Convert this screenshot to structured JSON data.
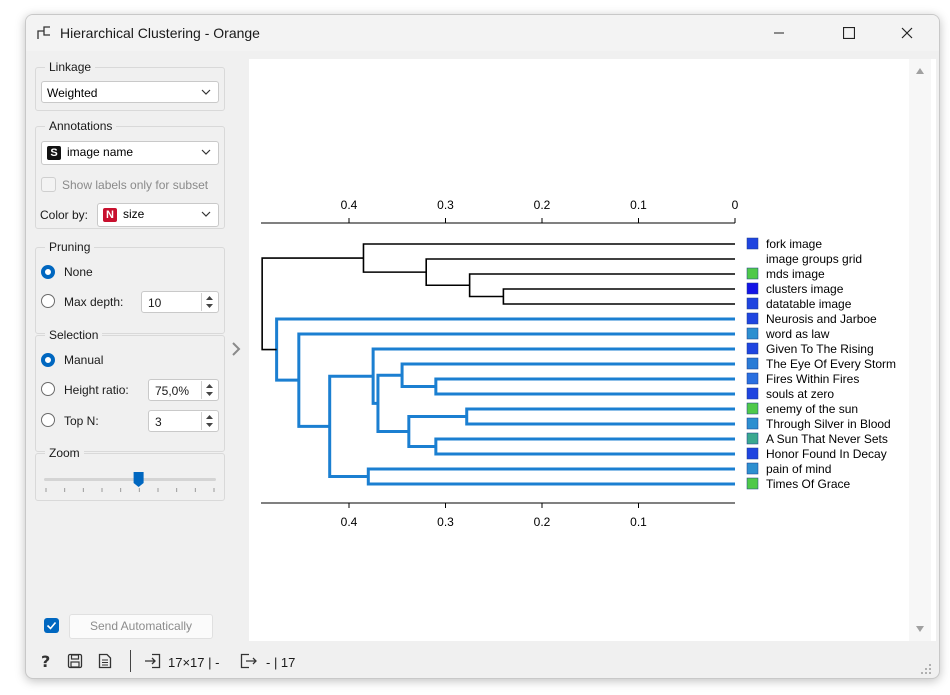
{
  "window": {
    "title": "Hierarchical Clustering - Orange"
  },
  "linkage": {
    "label": "Linkage",
    "value": "Weighted"
  },
  "annotations": {
    "label": "Annotations",
    "value": "image name",
    "badge": "S",
    "show_subset_label": "Show labels only for subset",
    "color_by_label": "Color by:",
    "color_by_value": "size",
    "color_badge": "N"
  },
  "pruning": {
    "label": "Pruning",
    "none_label": "None",
    "max_depth_label": "Max depth:",
    "max_depth_value": "10"
  },
  "selection": {
    "label": "Selection",
    "manual_label": "Manual",
    "height_ratio_label": "Height ratio:",
    "height_ratio_value": "75,0%",
    "top_n_label": "Top N:",
    "top_n_value": "3"
  },
  "zoom": {
    "label": "Zoom",
    "level": 0.55
  },
  "send": {
    "label": "Send Automatically",
    "checked": true
  },
  "status": {
    "input": "17×17 | -",
    "output": "- | 17"
  },
  "chart_data": {
    "type": "dendrogram",
    "axis_ticks": [
      "0.4",
      "0.3",
      "0.2",
      "0.1",
      "0"
    ],
    "axis_values": [
      0.4,
      0.3,
      0.2,
      0.1,
      0.0
    ],
    "bottom_axis_ticks": [
      "0.4",
      "0.3",
      "0.2",
      "0.1"
    ],
    "axis_range": [
      0.49,
      0.0
    ],
    "leaves": [
      {
        "name": "fork image",
        "color": "#1f45e0"
      },
      {
        "name": "image groups grid",
        "color": ""
      },
      {
        "name": "mds image",
        "color": "#4fc94a"
      },
      {
        "name": "clusters image",
        "color": "#1414e6"
      },
      {
        "name": "datatable image",
        "color": "#1f45e0"
      },
      {
        "name": "Neurosis and Jarboe",
        "color": "#1f45e0"
      },
      {
        "name": "word as law",
        "color": "#2e8fd0"
      },
      {
        "name": "Given To The Rising",
        "color": "#1f45e0"
      },
      {
        "name": "The Eye Of Every Storm",
        "color": "#2a7bd6"
      },
      {
        "name": "Fires Within Fires",
        "color": "#2a6fe0"
      },
      {
        "name": "souls at zero",
        "color": "#1f45e0"
      },
      {
        "name": "enemy of the sun",
        "color": "#4fc94a"
      },
      {
        "name": "Through Silver in Blood",
        "color": "#2e8fd0"
      },
      {
        "name": "A Sun That Never Sets",
        "color": "#3aa88f"
      },
      {
        "name": "Honor Found In Decay",
        "color": "#1f45e0"
      },
      {
        "name": "pain of mind",
        "color": "#2e8fd0"
      },
      {
        "name": "Times Of Grace",
        "color": "#4fc94a"
      }
    ],
    "merges": [
      {
        "a": 3,
        "b": 4,
        "height": 0.24,
        "group": "black"
      },
      {
        "a": 2,
        "b": "m0",
        "height": 0.275,
        "group": "black"
      },
      {
        "a": 1,
        "b": "m1",
        "height": 0.32,
        "group": "black"
      },
      {
        "a": 0,
        "b": "m2",
        "height": 0.385,
        "group": "black"
      },
      {
        "a": 9,
        "b": 10,
        "height": 0.31,
        "group": "blue"
      },
      {
        "a": 8,
        "b": "m4",
        "height": 0.345,
        "group": "blue"
      },
      {
        "a": 11,
        "b": 12,
        "height": 0.278,
        "group": "blue"
      },
      {
        "a": 13,
        "b": 14,
        "height": 0.31,
        "group": "blue"
      },
      {
        "a": "m6",
        "b": "m7",
        "height": 0.338,
        "group": "blue"
      },
      {
        "a": "m5",
        "b": "m8",
        "height": 0.37,
        "group": "blue"
      },
      {
        "a": 7,
        "b": "m9",
        "height": 0.375,
        "group": "blue"
      },
      {
        "a": 15,
        "b": 16,
        "height": 0.38,
        "group": "blue"
      },
      {
        "a": "m10",
        "b": "m11",
        "height": 0.42,
        "group": "blue"
      },
      {
        "a": 6,
        "b": "m12",
        "height": 0.452,
        "group": "blue"
      },
      {
        "a": 5,
        "b": "m13",
        "height": 0.475,
        "group": "blue"
      },
      {
        "a": "m3",
        "b": "m14",
        "height": 0.49,
        "group": "black"
      }
    ]
  }
}
